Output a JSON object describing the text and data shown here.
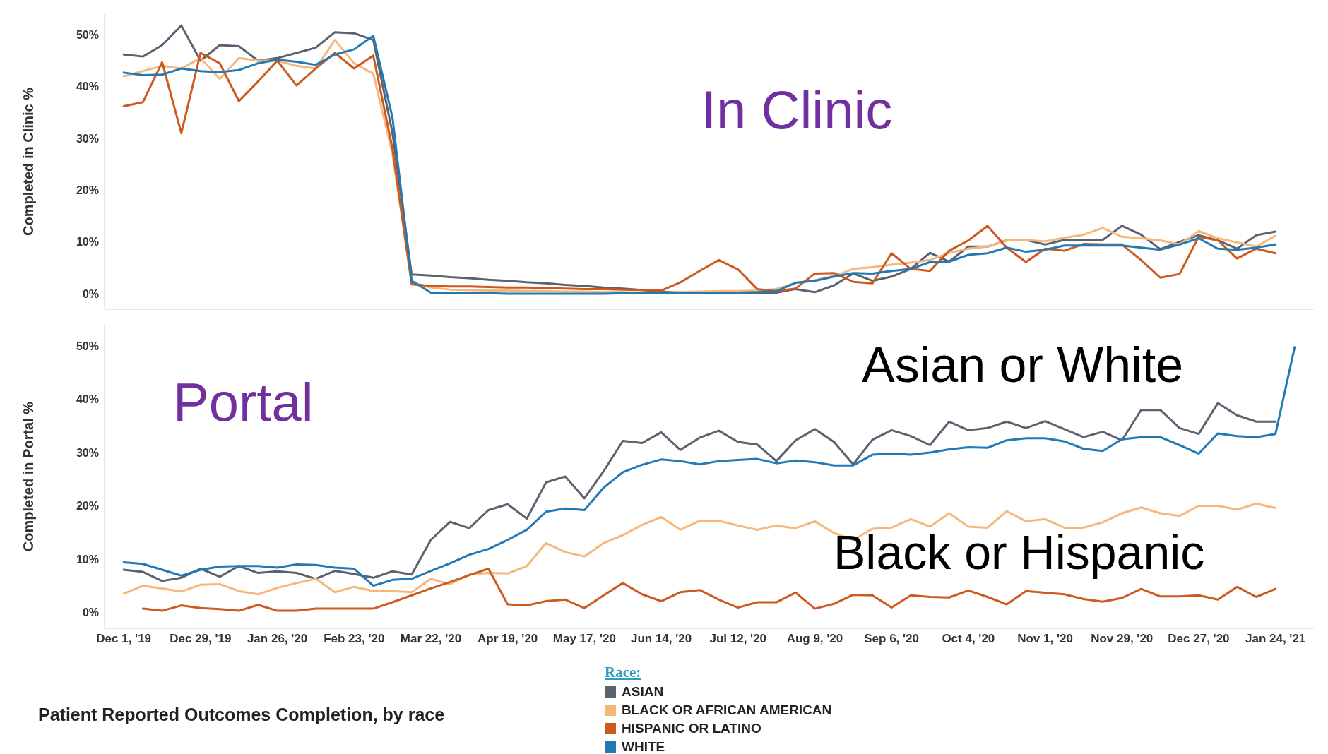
{
  "chart_data": [
    {
      "type": "line",
      "ylabel": "Completed in Clinic %",
      "annotations": [
        "In Clinic"
      ],
      "tick_labels": "y",
      "x": [
        "2019-12-01",
        "2019-12-08",
        "2019-12-15",
        "2019-12-22",
        "2019-12-29",
        "2020-01-05",
        "2020-01-12",
        "2020-01-19",
        "2020-01-26",
        "2020-02-02",
        "2020-02-09",
        "2020-02-16",
        "2020-02-23",
        "2020-03-01",
        "2020-03-08",
        "2020-03-15",
        "2020-03-22",
        "2020-03-29",
        "2020-04-05",
        "2020-04-12",
        "2020-04-19",
        "2020-04-26",
        "2020-05-03",
        "2020-05-10",
        "2020-05-17",
        "2020-05-24",
        "2020-05-31",
        "2020-06-07",
        "2020-06-14",
        "2020-06-21",
        "2020-06-28",
        "2020-07-05",
        "2020-07-12",
        "2020-07-19",
        "2020-07-26",
        "2020-08-02",
        "2020-08-09",
        "2020-08-16",
        "2020-08-23",
        "2020-08-30",
        "2020-09-06",
        "2020-09-13",
        "2020-09-20",
        "2020-09-27",
        "2020-10-04",
        "2020-10-11",
        "2020-10-18",
        "2020-10-25",
        "2020-11-01",
        "2020-11-08",
        "2020-11-15",
        "2020-11-22",
        "2020-11-29",
        "2020-12-06",
        "2020-12-13",
        "2020-12-20",
        "2020-12-27",
        "2021-01-03",
        "2021-01-10",
        "2021-01-17",
        "2021-01-24"
      ],
      "xlim": [
        "2019-11-24",
        "2021-02-07"
      ],
      "ylim": [
        -3,
        54
      ],
      "yticks": [
        {
          "value": 0,
          "label": "0%"
        },
        {
          "value": 10,
          "label": "10%"
        },
        {
          "value": 20,
          "label": "20%"
        },
        {
          "value": 30,
          "label": "30%"
        },
        {
          "value": 40,
          "label": "40%"
        },
        {
          "value": 50,
          "label": "50%"
        }
      ],
      "series": [
        {
          "color": "#5a6270",
          "values": [
            46.2,
            45.8,
            48,
            51.8,
            45,
            48,
            47.8,
            45,
            45.5,
            46.5,
            47.5,
            50.5,
            50.3,
            49,
            31,
            3.7,
            3.5,
            3.2,
            3,
            2.7,
            2.5,
            2.2,
            2,
            1.7,
            1.5,
            1.2,
            1,
            0.7,
            0.4,
            0.2,
            0.2,
            0.2,
            0.2,
            0.2,
            0.2,
            0.9,
            0.3,
            1.6,
            3.9,
            2.5,
            3.3,
            4.8,
            7.9,
            6.2,
            9.1,
            9.1,
            10.3,
            10.4,
            9.5,
            10.4,
            10.4,
            10.4,
            13.1,
            11.4,
            8.6,
            10,
            11.3,
            10.3,
            8.7,
            11.3,
            12
          ]
        },
        {
          "color": "#f6b87a",
          "values": [
            42,
            43,
            44,
            43.5,
            45.5,
            41.5,
            45.5,
            45,
            45,
            44,
            43.5,
            49,
            44.5,
            42.5,
            27,
            2.2,
            1.2,
            0.8,
            0.7,
            0.6,
            0.6,
            0.5,
            0.5,
            0.4,
            0.4,
            0.3,
            0.3,
            0.2,
            0.2,
            0.3,
            0.4,
            0.5,
            0.5,
            0.6,
            0.9,
            2.1,
            2.6,
            3.4,
            4.8,
            5.1,
            5.6,
            6,
            6.5,
            7.9,
            8.7,
            9.1,
            10.3,
            10.4,
            10.1,
            10.8,
            11.4,
            12.7,
            11,
            10.7,
            10.3,
            9.5,
            12.1,
            10.7,
            9.9,
            9.1,
            11.2
          ]
        },
        {
          "color": "#cc5a1e",
          "values": [
            36.2,
            37,
            44.7,
            31,
            46.5,
            44.5,
            37.2,
            41,
            45,
            40.2,
            43.5,
            46.5,
            43.5,
            46,
            28,
            1.8,
            1.5,
            1.4,
            1.4,
            1.3,
            1.2,
            1.2,
            1.1,
            1,
            0.9,
            0.9,
            0.8,
            0.7,
            0.6,
            2.2,
            4.4,
            6.5,
            4.7,
            0.9,
            0.5,
            1,
            3.9,
            4,
            2.3,
            2,
            7.8,
            4.8,
            4.4,
            8.3,
            10.3,
            13.1,
            8.9,
            6.1,
            8.7,
            8.3,
            9.6,
            9.5,
            9.5,
            6.5,
            3.1,
            3.8,
            11,
            10.3,
            6.8,
            8.7,
            7.8
          ]
        },
        {
          "color": "#2279b5",
          "values": [
            42.7,
            42.2,
            42.3,
            43.5,
            43,
            42.8,
            43.2,
            44.5,
            45.2,
            44.8,
            44.2,
            46.2,
            47.2,
            49.8,
            34,
            2.5,
            0.2,
            0.1,
            0.1,
            0.1,
            0,
            0,
            0,
            0,
            0,
            0,
            0.1,
            0.1,
            0.1,
            0.1,
            0.1,
            0.2,
            0.2,
            0.3,
            0.5,
            2.1,
            2.5,
            3.3,
            4,
            3.9,
            4.4,
            4.8,
            6.1,
            6.2,
            7.5,
            7.8,
            8.9,
            8.1,
            8.5,
            9.3,
            9.3,
            9.3,
            9.3,
            8.9,
            8.5,
            9.5,
            10.7,
            8.7,
            8.5,
            8.9,
            9.5
          ]
        }
      ]
    },
    {
      "type": "line",
      "title": "Patient Reported Outcomes Completion, by race",
      "ylabel": "Completed in Portal %",
      "annotations": [
        "Portal",
        "Asian or White",
        "Black or Hispanic"
      ],
      "legend": "bottom",
      "legend_title": "Race:",
      "x": [
        "2019-12-01",
        "2019-12-08",
        "2019-12-15",
        "2019-12-22",
        "2019-12-29",
        "2020-01-05",
        "2020-01-12",
        "2020-01-19",
        "2020-01-26",
        "2020-02-02",
        "2020-02-09",
        "2020-02-16",
        "2020-02-23",
        "2020-03-01",
        "2020-03-08",
        "2020-03-15",
        "2020-03-22",
        "2020-03-29",
        "2020-04-05",
        "2020-04-12",
        "2020-04-19",
        "2020-04-26",
        "2020-05-03",
        "2020-05-10",
        "2020-05-17",
        "2020-05-24",
        "2020-05-31",
        "2020-06-07",
        "2020-06-14",
        "2020-06-21",
        "2020-06-28",
        "2020-07-05",
        "2020-07-12",
        "2020-07-19",
        "2020-07-26",
        "2020-08-02",
        "2020-08-09",
        "2020-08-16",
        "2020-08-23",
        "2020-08-30",
        "2020-09-06",
        "2020-09-13",
        "2020-09-20",
        "2020-09-27",
        "2020-10-04",
        "2020-10-11",
        "2020-10-18",
        "2020-10-25",
        "2020-11-01",
        "2020-11-08",
        "2020-11-15",
        "2020-11-22",
        "2020-11-29",
        "2020-12-06",
        "2020-12-13",
        "2020-12-20",
        "2020-12-27",
        "2021-01-03",
        "2021-01-10",
        "2021-01-17",
        "2021-01-24",
        "2021-01-31"
      ],
      "xlim": [
        "2019-11-24",
        "2021-02-07"
      ],
      "xticks": [
        {
          "value": "2019-12-01",
          "label": "Dec 1, '19"
        },
        {
          "value": "2019-12-29",
          "label": "Dec 29, '19"
        },
        {
          "value": "2020-01-26",
          "label": "Jan 26, '20"
        },
        {
          "value": "2020-02-23",
          "label": "Feb 23, '20"
        },
        {
          "value": "2020-03-22",
          "label": "Mar 22, '20"
        },
        {
          "value": "2020-04-19",
          "label": "Apr 19, '20"
        },
        {
          "value": "2020-05-17",
          "label": "May 17, '20"
        },
        {
          "value": "2020-06-14",
          "label": "Jun 14, '20"
        },
        {
          "value": "2020-07-12",
          "label": "Jul 12, '20"
        },
        {
          "value": "2020-08-09",
          "label": "Aug 9, '20"
        },
        {
          "value": "2020-09-06",
          "label": "Sep 6, '20"
        },
        {
          "value": "2020-10-04",
          "label": "Oct 4, '20"
        },
        {
          "value": "2020-11-01",
          "label": "Nov 1, '20"
        },
        {
          "value": "2020-11-29",
          "label": "Nov 29, '20"
        },
        {
          "value": "2020-12-27",
          "label": "Dec 27, '20"
        },
        {
          "value": "2021-01-24",
          "label": "Jan 24, '21"
        }
      ],
      "ylim": [
        -3,
        54
      ],
      "yticks": [
        {
          "value": 0,
          "label": "0%"
        },
        {
          "value": 10,
          "label": "10%"
        },
        {
          "value": 20,
          "label": "20%"
        },
        {
          "value": 30,
          "label": "30%"
        },
        {
          "value": 40,
          "label": "40%"
        },
        {
          "value": 50,
          "label": "50%"
        }
      ],
      "series": [
        {
          "name": "ASIAN",
          "color": "#5a6270",
          "values": [
            8,
            7.6,
            5.9,
            6.5,
            8.2,
            6.7,
            8.7,
            7.4,
            7.7,
            7.4,
            6.3,
            7.8,
            7.2,
            6.5,
            7.7,
            7.1,
            13.6,
            17,
            15.8,
            19.2,
            20.3,
            17.6,
            24.4,
            25.5,
            21.4,
            26.5,
            32.2,
            31.8,
            33.8,
            30.5,
            32.8,
            34.1,
            32,
            31.5,
            28.4,
            32.3,
            34.4,
            32,
            27.8,
            32.4,
            34.2,
            33.1,
            31.4,
            35.8,
            34.2,
            34.6,
            35.8,
            34.6,
            35.9,
            34.4,
            32.9,
            33.9,
            32.3,
            38,
            38,
            34.6,
            33.5,
            39.3,
            37,
            35.8,
            35.8,
            null
          ]
        },
        {
          "name": "BLACK OR AFRICAN AMERICAN",
          "color": "#f6b87a",
          "values": [
            3.5,
            5,
            4.5,
            3.9,
            5.2,
            5.3,
            4,
            3.4,
            4.6,
            5.5,
            6.3,
            3.8,
            4.8,
            4,
            4,
            3.8,
            6.3,
            5.3,
            7.1,
            7.4,
            7.3,
            8.7,
            13,
            11.3,
            10.5,
            13,
            14.5,
            16.4,
            17.9,
            15.5,
            17.2,
            17.2,
            16.3,
            15.5,
            16.3,
            15.8,
            17.1,
            14.9,
            13.6,
            15.7,
            15.9,
            17.5,
            16.1,
            18.6,
            16.1,
            15.9,
            19,
            17.1,
            17.5,
            15.9,
            15.9,
            16.9,
            18.6,
            19.7,
            18.6,
            18.1,
            20,
            20,
            19.3,
            20.4,
            19.6,
            null
          ]
        },
        {
          "name": "HISPANIC OR LATINO",
          "color": "#cc5a1e",
          "values": [
            null,
            0.7,
            0.3,
            1.3,
            0.8,
            0.6,
            0.3,
            1.4,
            0.3,
            0.3,
            0.7,
            0.7,
            0.7,
            0.7,
            1.9,
            3.2,
            4.5,
            5.7,
            7,
            8.2,
            1.5,
            1.3,
            2.1,
            2.4,
            0.8,
            3.2,
            5.5,
            3.4,
            2.1,
            3.8,
            4.2,
            2.4,
            0.9,
            1.9,
            1.9,
            3.7,
            0.7,
            1.6,
            3.3,
            3.2,
            0.9,
            3.2,
            2.9,
            2.8,
            4.1,
            2.9,
            1.5,
            4,
            3.7,
            3.4,
            2.5,
            2,
            2.7,
            4.4,
            3,
            3,
            3.2,
            2.4,
            4.8,
            2.9,
            4.4,
            null
          ]
        },
        {
          "name": "WHITE",
          "color": "#2279b5",
          "values": [
            9.4,
            9.1,
            8,
            6.9,
            8,
            8.6,
            8.7,
            8.7,
            8.4,
            9,
            8.9,
            8.4,
            8.2,
            5,
            6.1,
            6.3,
            7.8,
            9.2,
            10.8,
            11.9,
            13.6,
            15.5,
            18.9,
            19.5,
            19.2,
            23.4,
            26.3,
            27.7,
            28.7,
            28.4,
            27.8,
            28.4,
            28.6,
            28.8,
            28,
            28.5,
            28.2,
            27.6,
            27.6,
            29.6,
            29.8,
            29.6,
            30,
            30.6,
            31,
            30.9,
            32.3,
            32.7,
            32.7,
            32.1,
            30.7,
            30.3,
            32.5,
            32.9,
            32.9,
            31.4,
            29.8,
            33.6,
            33.1,
            32.9,
            33.5,
            49.8
          ]
        }
      ]
    }
  ]
}
